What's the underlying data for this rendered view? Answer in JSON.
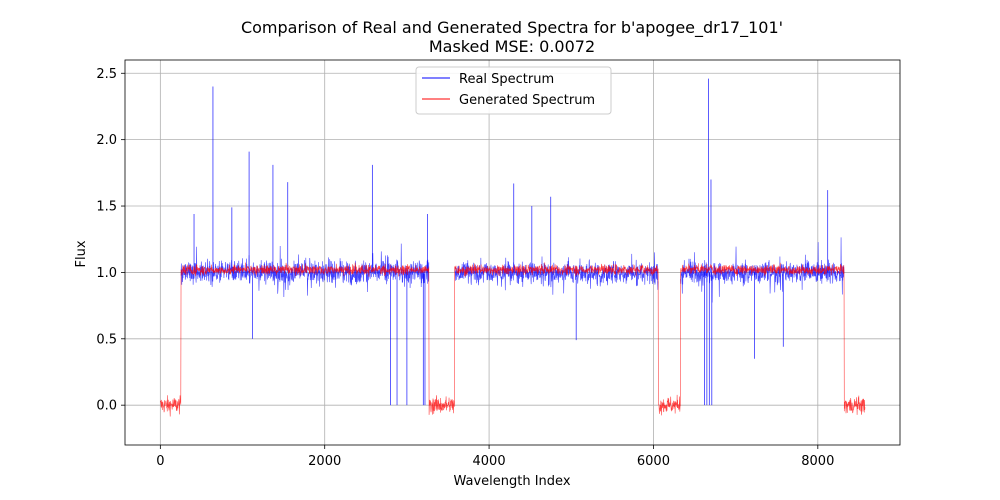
{
  "chart_data": {
    "type": "line",
    "title": "Comparison of Real and Generated Spectra for b'apogee_dr17_101'",
    "subtitle": "Masked MSE: 0.0072",
    "xlabel": "Wavelength Index",
    "ylabel": "Flux",
    "xlim": [
      -430,
      9000
    ],
    "ylim": [
      -0.3,
      2.6
    ],
    "xticks": [
      0,
      2000,
      4000,
      6000,
      8000
    ],
    "xtick_labels": [
      "0",
      "2000",
      "4000",
      "6000",
      "8000"
    ],
    "yticks": [
      0.0,
      0.5,
      1.0,
      1.5,
      2.0,
      2.5
    ],
    "ytick_labels": [
      "0.0",
      "0.5",
      "1.0",
      "1.5",
      "2.0",
      "2.5"
    ],
    "grid": true,
    "legend_position": "top-center",
    "n_points": 8575,
    "segments": [
      {
        "start": 0,
        "end": 250,
        "type": "gap"
      },
      {
        "start": 250,
        "end": 3270,
        "type": "data"
      },
      {
        "start": 3270,
        "end": 3580,
        "type": "gap"
      },
      {
        "start": 3580,
        "end": 6060,
        "type": "data"
      },
      {
        "start": 6060,
        "end": 6330,
        "type": "gap"
      },
      {
        "start": 6330,
        "end": 8320,
        "type": "data"
      },
      {
        "start": 8320,
        "end": 8575,
        "type": "gap"
      }
    ],
    "real_spikes": [
      {
        "x": 640,
        "y": 2.4
      },
      {
        "x": 1080,
        "y": 1.91
      },
      {
        "x": 1370,
        "y": 1.81
      },
      {
        "x": 1550,
        "y": 1.68
      },
      {
        "x": 410,
        "y": 1.44
      },
      {
        "x": 870,
        "y": 1.49
      },
      {
        "x": 2580,
        "y": 1.81
      },
      {
        "x": 3250,
        "y": 1.44
      },
      {
        "x": 4300,
        "y": 1.67
      },
      {
        "x": 4520,
        "y": 1.5
      },
      {
        "x": 4750,
        "y": 1.57
      },
      {
        "x": 6670,
        "y": 2.46
      },
      {
        "x": 6700,
        "y": 1.7
      },
      {
        "x": 8120,
        "y": 1.62
      }
    ],
    "real_drops": [
      {
        "x": 2800,
        "y": 0.0
      },
      {
        "x": 2880,
        "y": 0.0
      },
      {
        "x": 3000,
        "y": 0.0
      },
      {
        "x": 3200,
        "y": 0.0
      },
      {
        "x": 3220,
        "y": 0.0
      },
      {
        "x": 6620,
        "y": 0.0
      },
      {
        "x": 6650,
        "y": 0.0
      },
      {
        "x": 6680,
        "y": 0.0
      },
      {
        "x": 6710,
        "y": 0.0
      },
      {
        "x": 1120,
        "y": 0.5
      },
      {
        "x": 5060,
        "y": 0.49
      },
      {
        "x": 7230,
        "y": 0.35
      },
      {
        "x": 7580,
        "y": 0.44
      }
    ],
    "series": [
      {
        "name": "Real Spectrum",
        "color": "#0000ff",
        "baseline": 1.0,
        "noise": 0.09,
        "gap_value": null
      },
      {
        "name": "Generated Spectrum",
        "color": "#ff0000",
        "baseline": 1.02,
        "noise": 0.04,
        "gap_value": 0.0,
        "gap_noise": 0.07
      }
    ]
  }
}
